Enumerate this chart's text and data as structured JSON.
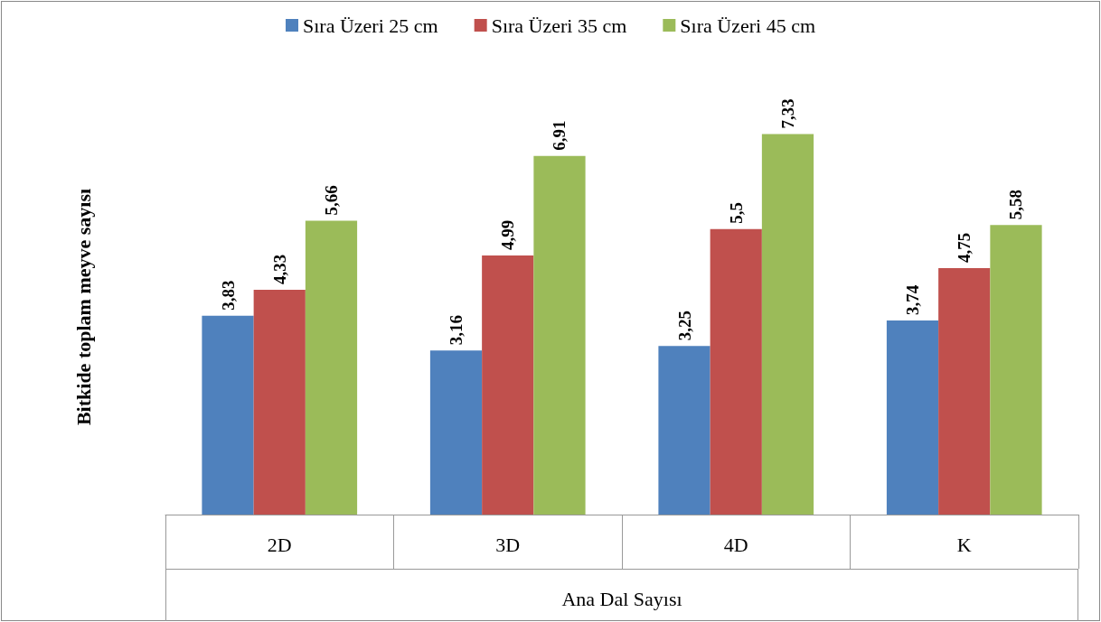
{
  "chart_data": {
    "type": "bar",
    "xlabel": "Ana Dal Sayısı",
    "ylabel": "Bitkide toplam meyve sayısı",
    "categories": [
      "2D",
      "3D",
      "4D",
      "K"
    ],
    "tick_labels": "x",
    "legend": "top",
    "grid": false,
    "series": [
      {
        "name": "Sıra Üzeri 25 cm",
        "color": "#4f81bd",
        "values": [
          3.83,
          3.16,
          3.25,
          3.74
        ],
        "value_labels": [
          "3,83",
          "3,16",
          "3,25",
          "3,74"
        ]
      },
      {
        "name": "Sıra Üzeri 35 cm",
        "color": "#c0504d",
        "values": [
          4.33,
          4.99,
          5.5,
          4.75
        ],
        "value_labels": [
          "4,33",
          "4,99",
          "5,5",
          "4,75"
        ]
      },
      {
        "name": "Sıra Üzeri 45 cm",
        "color": "#9bbb59",
        "values": [
          5.66,
          6.91,
          7.33,
          5.58
        ],
        "value_labels": [
          "5,66",
          "6,91",
          "7,33",
          "5,58"
        ]
      }
    ]
  }
}
